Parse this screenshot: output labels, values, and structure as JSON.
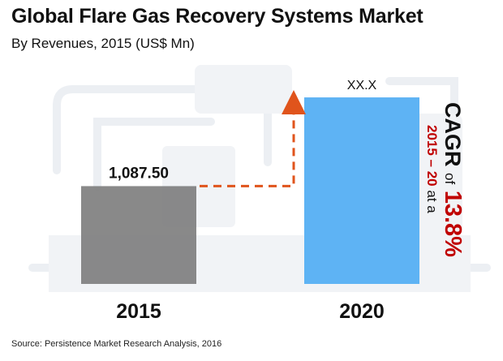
{
  "header": {
    "title": "Global Flare Gas Recovery Systems Market",
    "subtitle": "By Revenues, 2015 (US$ Mn)"
  },
  "chart_data": {
    "type": "bar",
    "categories": [
      "2015",
      "2020"
    ],
    "values": [
      1087.5,
      2074
    ],
    "data_labels": [
      "1,087.50",
      "XX.X"
    ],
    "ylim": [
      0,
      2300
    ],
    "grid": false,
    "bar_colors": [
      "#7f7f7f",
      "#55aff3"
    ],
    "arrow_color": "#e0541c"
  },
  "cagr": {
    "label": "CAGR",
    "of": "of",
    "value": "13.8%",
    "period": "2015 – 20",
    "at": "at a"
  },
  "footer": {
    "source": "Source: Persistence Market Research Analysis, 2016"
  },
  "colors": {
    "accent_red": "#c00000",
    "text": "#111111"
  }
}
